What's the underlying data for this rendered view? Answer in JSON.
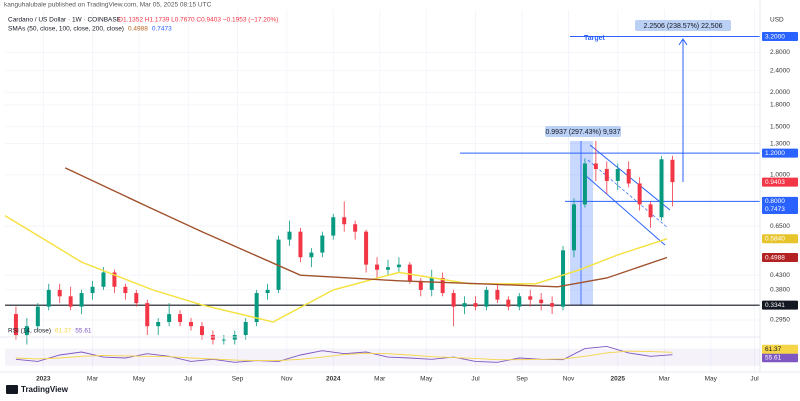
{
  "chart_data": {
    "type": "candlestick",
    "publisher": "kanguhalubale published on TradingView.com, Mar 05, 2025 08:15 UTC",
    "title": "Cardano / US Dollar · 1W · COINBASE",
    "ohlc_text": "O1.1352 H1.1739 L0.7670 C0.9403 −0.1953 (−17.20%)",
    "sma_legend": {
      "name": "SMAs (50, close, 100, close, 200, close)",
      "values": [
        "0.4988",
        "0.7473"
      ],
      "colors": [
        "#b5651d",
        "#2962ff"
      ]
    },
    "currency": "USD",
    "footer": "TradingView",
    "log_scale": true,
    "grid": true,
    "up_color": "#089981",
    "down_color": "#f23645",
    "xlim": [
      -2,
      136
    ],
    "ylim": [
      0.26,
      4.0
    ],
    "xticks": [
      {
        "value": 5,
        "label": "2023"
      },
      {
        "value": 14,
        "label": "Mar"
      },
      {
        "value": 22.5,
        "label": "May"
      },
      {
        "value": 31.5,
        "label": "Jul"
      },
      {
        "value": 40.5,
        "label": "Sep"
      },
      {
        "value": 49.5,
        "label": "Nov"
      },
      {
        "value": 58,
        "label": "2024"
      },
      {
        "value": 66.5,
        "label": "Mar"
      },
      {
        "value": 75,
        "label": "May"
      },
      {
        "value": 84,
        "label": "Jul"
      },
      {
        "value": 92.5,
        "label": "Sep"
      },
      {
        "value": 101,
        "label": "Nov"
      },
      {
        "value": 110,
        "label": "2025"
      },
      {
        "value": 118.5,
        "label": "Mar"
      },
      {
        "value": 127,
        "label": "May"
      },
      {
        "value": 135,
        "label": "Jul"
      }
    ],
    "yticks": [
      {
        "value": 2.8,
        "label": "2.8000"
      },
      {
        "value": 2.4,
        "label": "2.4000"
      },
      {
        "value": 2.0,
        "label": "2.0000"
      },
      {
        "value": 1.8,
        "label": "1.8000"
      },
      {
        "value": 1.5,
        "label": "1.5000"
      },
      {
        "value": 1.3,
        "label": "1.3000"
      },
      {
        "value": 1.0,
        "label": "1.0000"
      },
      {
        "value": 0.65,
        "label": "0.6500"
      },
      {
        "value": 0.43,
        "label": "0.4300"
      },
      {
        "value": 0.38,
        "label": "0.3800"
      },
      {
        "value": 0.295,
        "label": "0.2950"
      }
    ],
    "x": [
      0,
      2,
      4,
      6,
      8,
      10,
      12,
      14,
      16,
      18,
      20,
      22,
      24,
      26,
      28,
      30,
      32,
      34,
      36,
      38,
      40,
      42,
      44,
      46,
      48,
      50,
      52,
      54,
      56,
      58,
      60,
      62,
      64,
      66,
      68,
      70,
      72,
      74,
      76,
      78,
      80,
      82,
      84,
      86,
      88,
      90,
      92,
      94,
      96,
      98,
      100,
      102,
      104,
      106,
      108,
      110,
      112,
      114,
      116,
      118,
      120
    ],
    "open": [
      0.31,
      0.26,
      0.28,
      0.33,
      0.38,
      0.36,
      0.33,
      0.37,
      0.39,
      0.44,
      0.39,
      0.37,
      0.34,
      0.28,
      0.29,
      0.31,
      0.29,
      0.28,
      0.26,
      0.25,
      0.25,
      0.26,
      0.29,
      0.37,
      0.38,
      0.58,
      0.62,
      0.5,
      0.52,
      0.6,
      0.7,
      0.66,
      0.62,
      0.47,
      0.45,
      0.46,
      0.47,
      0.41,
      0.38,
      0.42,
      0.37,
      0.33,
      0.34,
      0.33,
      0.38,
      0.35,
      0.33,
      0.36,
      0.35,
      0.34,
      0.33,
      0.53,
      0.78,
      1.1,
      1.05,
      0.95,
      1.05,
      0.93,
      0.78,
      0.7,
      1.1352
    ],
    "high": [
      0.33,
      0.3,
      0.34,
      0.4,
      0.4,
      0.39,
      0.38,
      0.41,
      0.46,
      0.45,
      0.4,
      0.38,
      0.35,
      0.3,
      0.34,
      0.32,
      0.3,
      0.29,
      0.27,
      0.26,
      0.27,
      0.3,
      0.38,
      0.4,
      0.6,
      0.68,
      0.64,
      0.54,
      0.62,
      0.72,
      0.8,
      0.68,
      0.63,
      0.5,
      0.49,
      0.5,
      0.48,
      0.42,
      0.45,
      0.44,
      0.38,
      0.36,
      0.36,
      0.39,
      0.4,
      0.36,
      0.37,
      0.38,
      0.37,
      0.36,
      0.55,
      0.82,
      1.15,
      1.33,
      1.12,
      1.1,
      1.12,
      0.98,
      0.8,
      1.17,
      1.1739
    ],
    "low": [
      0.25,
      0.24,
      0.27,
      0.32,
      0.34,
      0.32,
      0.31,
      0.35,
      0.38,
      0.37,
      0.35,
      0.33,
      0.26,
      0.26,
      0.28,
      0.28,
      0.27,
      0.25,
      0.24,
      0.24,
      0.24,
      0.25,
      0.28,
      0.35,
      0.37,
      0.55,
      0.48,
      0.46,
      0.5,
      0.58,
      0.62,
      0.58,
      0.44,
      0.42,
      0.43,
      0.44,
      0.4,
      0.36,
      0.36,
      0.36,
      0.28,
      0.31,
      0.32,
      0.32,
      0.34,
      0.32,
      0.32,
      0.33,
      0.32,
      0.31,
      0.32,
      0.5,
      0.76,
      0.95,
      0.85,
      0.88,
      0.9,
      0.74,
      0.64,
      0.68,
      0.767
    ],
    "close": [
      0.26,
      0.28,
      0.33,
      0.38,
      0.36,
      0.33,
      0.37,
      0.39,
      0.44,
      0.39,
      0.37,
      0.34,
      0.28,
      0.29,
      0.31,
      0.29,
      0.28,
      0.26,
      0.25,
      0.25,
      0.26,
      0.29,
      0.37,
      0.38,
      0.58,
      0.62,
      0.5,
      0.52,
      0.6,
      0.7,
      0.66,
      0.62,
      0.47,
      0.45,
      0.46,
      0.47,
      0.41,
      0.38,
      0.42,
      0.37,
      0.33,
      0.34,
      0.33,
      0.38,
      0.35,
      0.33,
      0.36,
      0.35,
      0.34,
      0.33,
      0.53,
      0.78,
      1.1,
      1.05,
      0.95,
      1.05,
      0.93,
      0.78,
      0.7,
      1.14,
      0.9403
    ],
    "lines": [
      {
        "color": "#f5e13b",
        "x": [
          -2,
          12,
          25,
          34,
          47,
          58,
          70,
          83,
          95,
          103,
          110,
          119
        ],
        "values": [
          0.71,
          0.48,
          0.38,
          0.335,
          0.29,
          0.38,
          0.44,
          0.4,
          0.4,
          0.45,
          0.51,
          0.584
        ]
      },
      {
        "color": "#a0522d",
        "x": [
          9,
          25,
          34,
          52,
          70,
          85,
          99,
          108,
          119
        ],
        "values": [
          1.06,
          0.75,
          0.62,
          0.43,
          0.41,
          0.4,
          0.39,
          0.42,
          0.4988
        ]
      }
    ],
    "price_labels": [
      {
        "value": 3.2,
        "label": "3.2000",
        "color": "#2962ff"
      },
      {
        "value": 1.2,
        "label": "1.2000",
        "color": "#2962ff"
      },
      {
        "value": 0.9403,
        "label": "0.9403",
        "color": "#f23645"
      },
      {
        "value": 0.8,
        "label": "0.8000",
        "color": "#2962ff"
      },
      {
        "value": 0.7473,
        "label": "0.7473",
        "color": "#2962ff"
      },
      {
        "value": 0.584,
        "label": "0.5840",
        "color": "#e8c42c"
      },
      {
        "value": 0.4988,
        "label": "0.4988",
        "color": "#b22222"
      },
      {
        "value": 0.3341,
        "label": "0.3341",
        "color": "#131722"
      }
    ],
    "annotations": {
      "target": "Target",
      "target_measure": "2.2506 (238.57%) 22,506",
      "rally_measure": "0.9937 (297.43%) 9,937"
    },
    "rsi": {
      "name": "RSI (14, close)",
      "ylim": [
        20,
        90
      ],
      "band": [
        30,
        70
      ],
      "x": [
        0,
        4,
        8,
        12,
        16,
        20,
        24,
        28,
        32,
        36,
        40,
        44,
        48,
        52,
        56,
        60,
        64,
        68,
        72,
        76,
        80,
        84,
        88,
        92,
        96,
        100,
        104,
        108,
        112,
        116,
        120
      ],
      "series": [
        {
          "color": "#7e57c2",
          "label": "55.61",
          "values": [
            45,
            40,
            55,
            62,
            50,
            48,
            58,
            52,
            40,
            45,
            38,
            42,
            40,
            55,
            65,
            58,
            62,
            50,
            48,
            45,
            50,
            40,
            38,
            48,
            45,
            44,
            70,
            75,
            60,
            52,
            55.61
          ]
        },
        {
          "color": "#f5d547",
          "label": "61.37",
          "values": [
            48,
            46,
            48,
            52,
            54,
            53,
            52,
            51,
            48,
            46,
            43,
            42,
            42,
            45,
            50,
            56,
            59,
            58,
            55,
            51,
            49,
            47,
            44,
            44,
            45,
            46,
            52,
            60,
            64,
            63,
            61.37
          ]
        }
      ]
    }
  }
}
